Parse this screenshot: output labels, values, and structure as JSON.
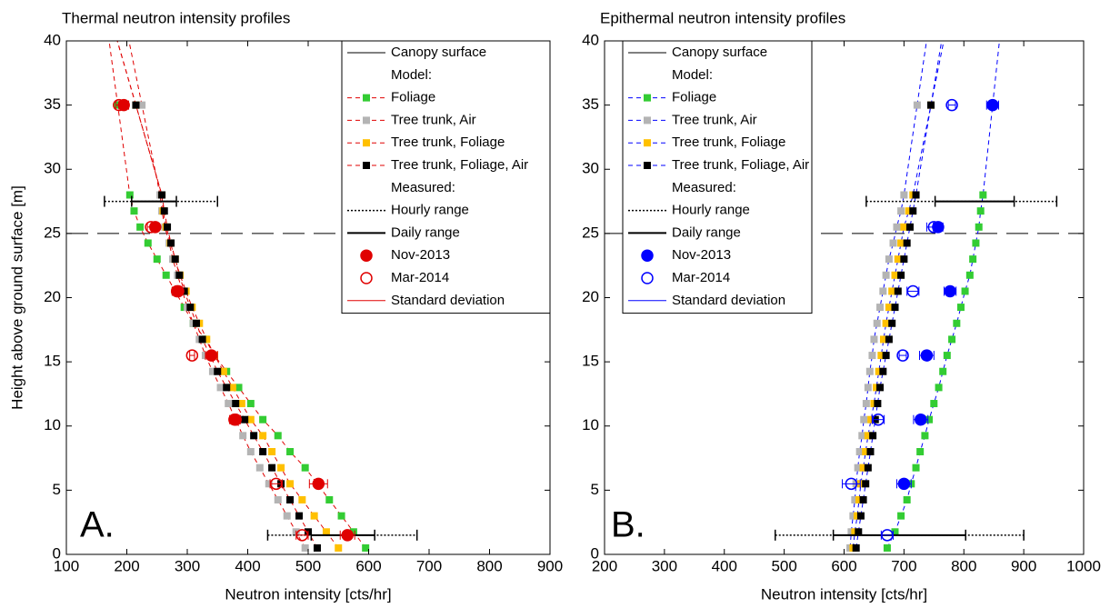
{
  "chart_data": [
    {
      "type": "scatter",
      "title": "Thermal neutron intensity profiles",
      "xlabel": "Neutron intensity [cts/hr]",
      "ylabel": "Height above ground surface [m]",
      "panel_label": "A.",
      "xlim": [
        100,
        900
      ],
      "xticks": [
        100,
        200,
        300,
        400,
        500,
        600,
        700,
        800,
        900
      ],
      "ylim": [
        0,
        40
      ],
      "yticks": [
        0,
        5,
        10,
        15,
        20,
        25,
        30,
        35,
        40
      ],
      "color": "#e00000",
      "canopy_surface": 25,
      "legend": {
        "canopy": "Canopy surface",
        "model_heading": "Model:",
        "measured_heading": "Measured:",
        "hourly": "Hourly range",
        "daily": "Daily range",
        "std": "Standard deviation"
      },
      "model_heights": [
        0.5,
        1.75,
        3,
        4.25,
        5.5,
        6.75,
        8,
        9.25,
        10.5,
        11.75,
        13,
        14.25,
        15.5,
        16.75,
        18,
        19.25,
        20.5,
        21.75,
        23,
        24.25,
        25.5,
        26.75,
        28,
        35
      ],
      "model": [
        {
          "name": "Foliage",
          "color": "#33cc33",
          "values": [
            595,
            575,
            555,
            535,
            515,
            495,
            470,
            450,
            425,
            405,
            385,
            365,
            345,
            330,
            310,
            295,
            280,
            265,
            250,
            235,
            222,
            212,
            205,
            185
          ]
        },
        {
          "name": "Tree trunk, Air",
          "color": "#b4b4b4",
          "values": [
            495,
            480,
            465,
            450,
            435,
            420,
            405,
            392,
            380,
            368,
            355,
            342,
            330,
            320,
            310,
            300,
            292,
            284,
            276,
            270,
            263,
            258,
            255,
            225
          ]
        },
        {
          "name": "Tree trunk, Foliage",
          "color": "#ffc000",
          "values": [
            550,
            530,
            510,
            490,
            470,
            455,
            440,
            425,
            405,
            390,
            375,
            360,
            345,
            332,
            320,
            308,
            298,
            288,
            280,
            272,
            265,
            260,
            258,
            215
          ]
        },
        {
          "name": "Tree trunk, Foliage, Air",
          "color": "#000000",
          "values": [
            515,
            500,
            485,
            470,
            455,
            440,
            425,
            410,
            395,
            380,
            365,
            350,
            338,
            325,
            315,
            305,
            295,
            287,
            280,
            273,
            267,
            262,
            258,
            215
          ]
        }
      ],
      "measured_heights": [
        1.5,
        5.5,
        10.5,
        15.5,
        20.5,
        25.5,
        35
      ],
      "measured": [
        {
          "name": "Nov-2013",
          "filled": true,
          "values": [
            565,
            517,
            380,
            340,
            285,
            247,
            195
          ],
          "errors": [
            12,
            15,
            8,
            10,
            6,
            5,
            8
          ]
        },
        {
          "name": "Mar-2014",
          "filled": false,
          "values": [
            490,
            447,
            378,
            308,
            283,
            240,
            187
          ],
          "errors": [
            10,
            10,
            8,
            4,
            8,
            6,
            5
          ]
        }
      ],
      "range_heights": [
        27.5,
        1.5
      ],
      "hourly_range": [
        [
          163,
          350
        ],
        [
          433,
          680
        ]
      ],
      "daily_range": [
        [
          208,
          282
        ],
        [
          505,
          610
        ]
      ]
    },
    {
      "type": "scatter",
      "title": "Epithermal neutron intensity profiles",
      "xlabel": "Neutron intensity [cts/hr]",
      "panel_label": "B.",
      "xlim": [
        200,
        1000
      ],
      "xticks": [
        200,
        300,
        400,
        500,
        600,
        700,
        800,
        900,
        1000
      ],
      "ylim": [
        0,
        40
      ],
      "yticks": [
        0,
        5,
        10,
        15,
        20,
        25,
        30,
        35,
        40
      ],
      "color": "#0000ff",
      "canopy_surface": 25,
      "legend": {
        "canopy": "Canopy surface",
        "model_heading": "Model:",
        "measured_heading": "Measured:",
        "hourly": "Hourly range",
        "daily": "Daily range",
        "std": "Standard deviation"
      },
      "model_heights": [
        0.5,
        1.75,
        3,
        4.25,
        5.5,
        6.75,
        8,
        9.25,
        10.5,
        11.75,
        13,
        14.25,
        15.5,
        16.75,
        18,
        19.25,
        20.5,
        21.75,
        23,
        24.25,
        25.5,
        26.75,
        28,
        35
      ],
      "model": [
        {
          "name": "Foliage",
          "color": "#33cc33",
          "values": [
            672,
            685,
            695,
            705,
            712,
            720,
            727,
            735,
            742,
            750,
            758,
            765,
            772,
            780,
            788,
            795,
            802,
            810,
            815,
            820,
            825,
            828,
            832,
            848
          ]
        },
        {
          "name": "Tree trunk, Air",
          "color": "#b4b4b4",
          "values": [
            610,
            612,
            615,
            618,
            620,
            623,
            626,
            630,
            633,
            637,
            640,
            643,
            647,
            650,
            655,
            660,
            665,
            670,
            675,
            682,
            688,
            695,
            700,
            722
          ]
        },
        {
          "name": "Tree trunk, Foliage",
          "color": "#ffc000",
          "values": [
            615,
            618,
            622,
            625,
            628,
            632,
            636,
            640,
            645,
            650,
            654,
            658,
            662,
            666,
            670,
            675,
            680,
            685,
            690,
            695,
            700,
            708,
            715,
            745
          ]
        },
        {
          "name": "Tree trunk, Foliage, Air",
          "color": "#000000",
          "values": [
            620,
            624,
            628,
            632,
            636,
            640,
            644,
            648,
            652,
            656,
            660,
            665,
            670,
            675,
            680,
            685,
            690,
            695,
            700,
            705,
            710,
            715,
            720,
            745
          ]
        }
      ],
      "measured_heights": [
        1.5,
        5.5,
        10.5,
        15.5,
        20.5,
        25.5,
        35
      ],
      "measured": [
        {
          "name": "Nov-2013",
          "filled": true,
          "values": [
            null,
            700,
            728,
            738,
            777,
            757,
            848
          ],
          "errors": [
            null,
            12,
            12,
            12,
            10,
            8,
            10
          ]
        },
        {
          "name": "Mar-2014",
          "filled": false,
          "values": [
            672,
            612,
            657,
            698,
            715,
            750,
            780
          ],
          "errors": [
            10,
            15,
            10,
            6,
            10,
            12,
            6
          ]
        }
      ],
      "range_heights": [
        27.5,
        1.5
      ],
      "hourly_range": [
        [
          637,
          955
        ],
        [
          485,
          900
        ]
      ],
      "daily_range": [
        [
          752,
          884
        ],
        [
          582,
          803
        ]
      ]
    }
  ]
}
